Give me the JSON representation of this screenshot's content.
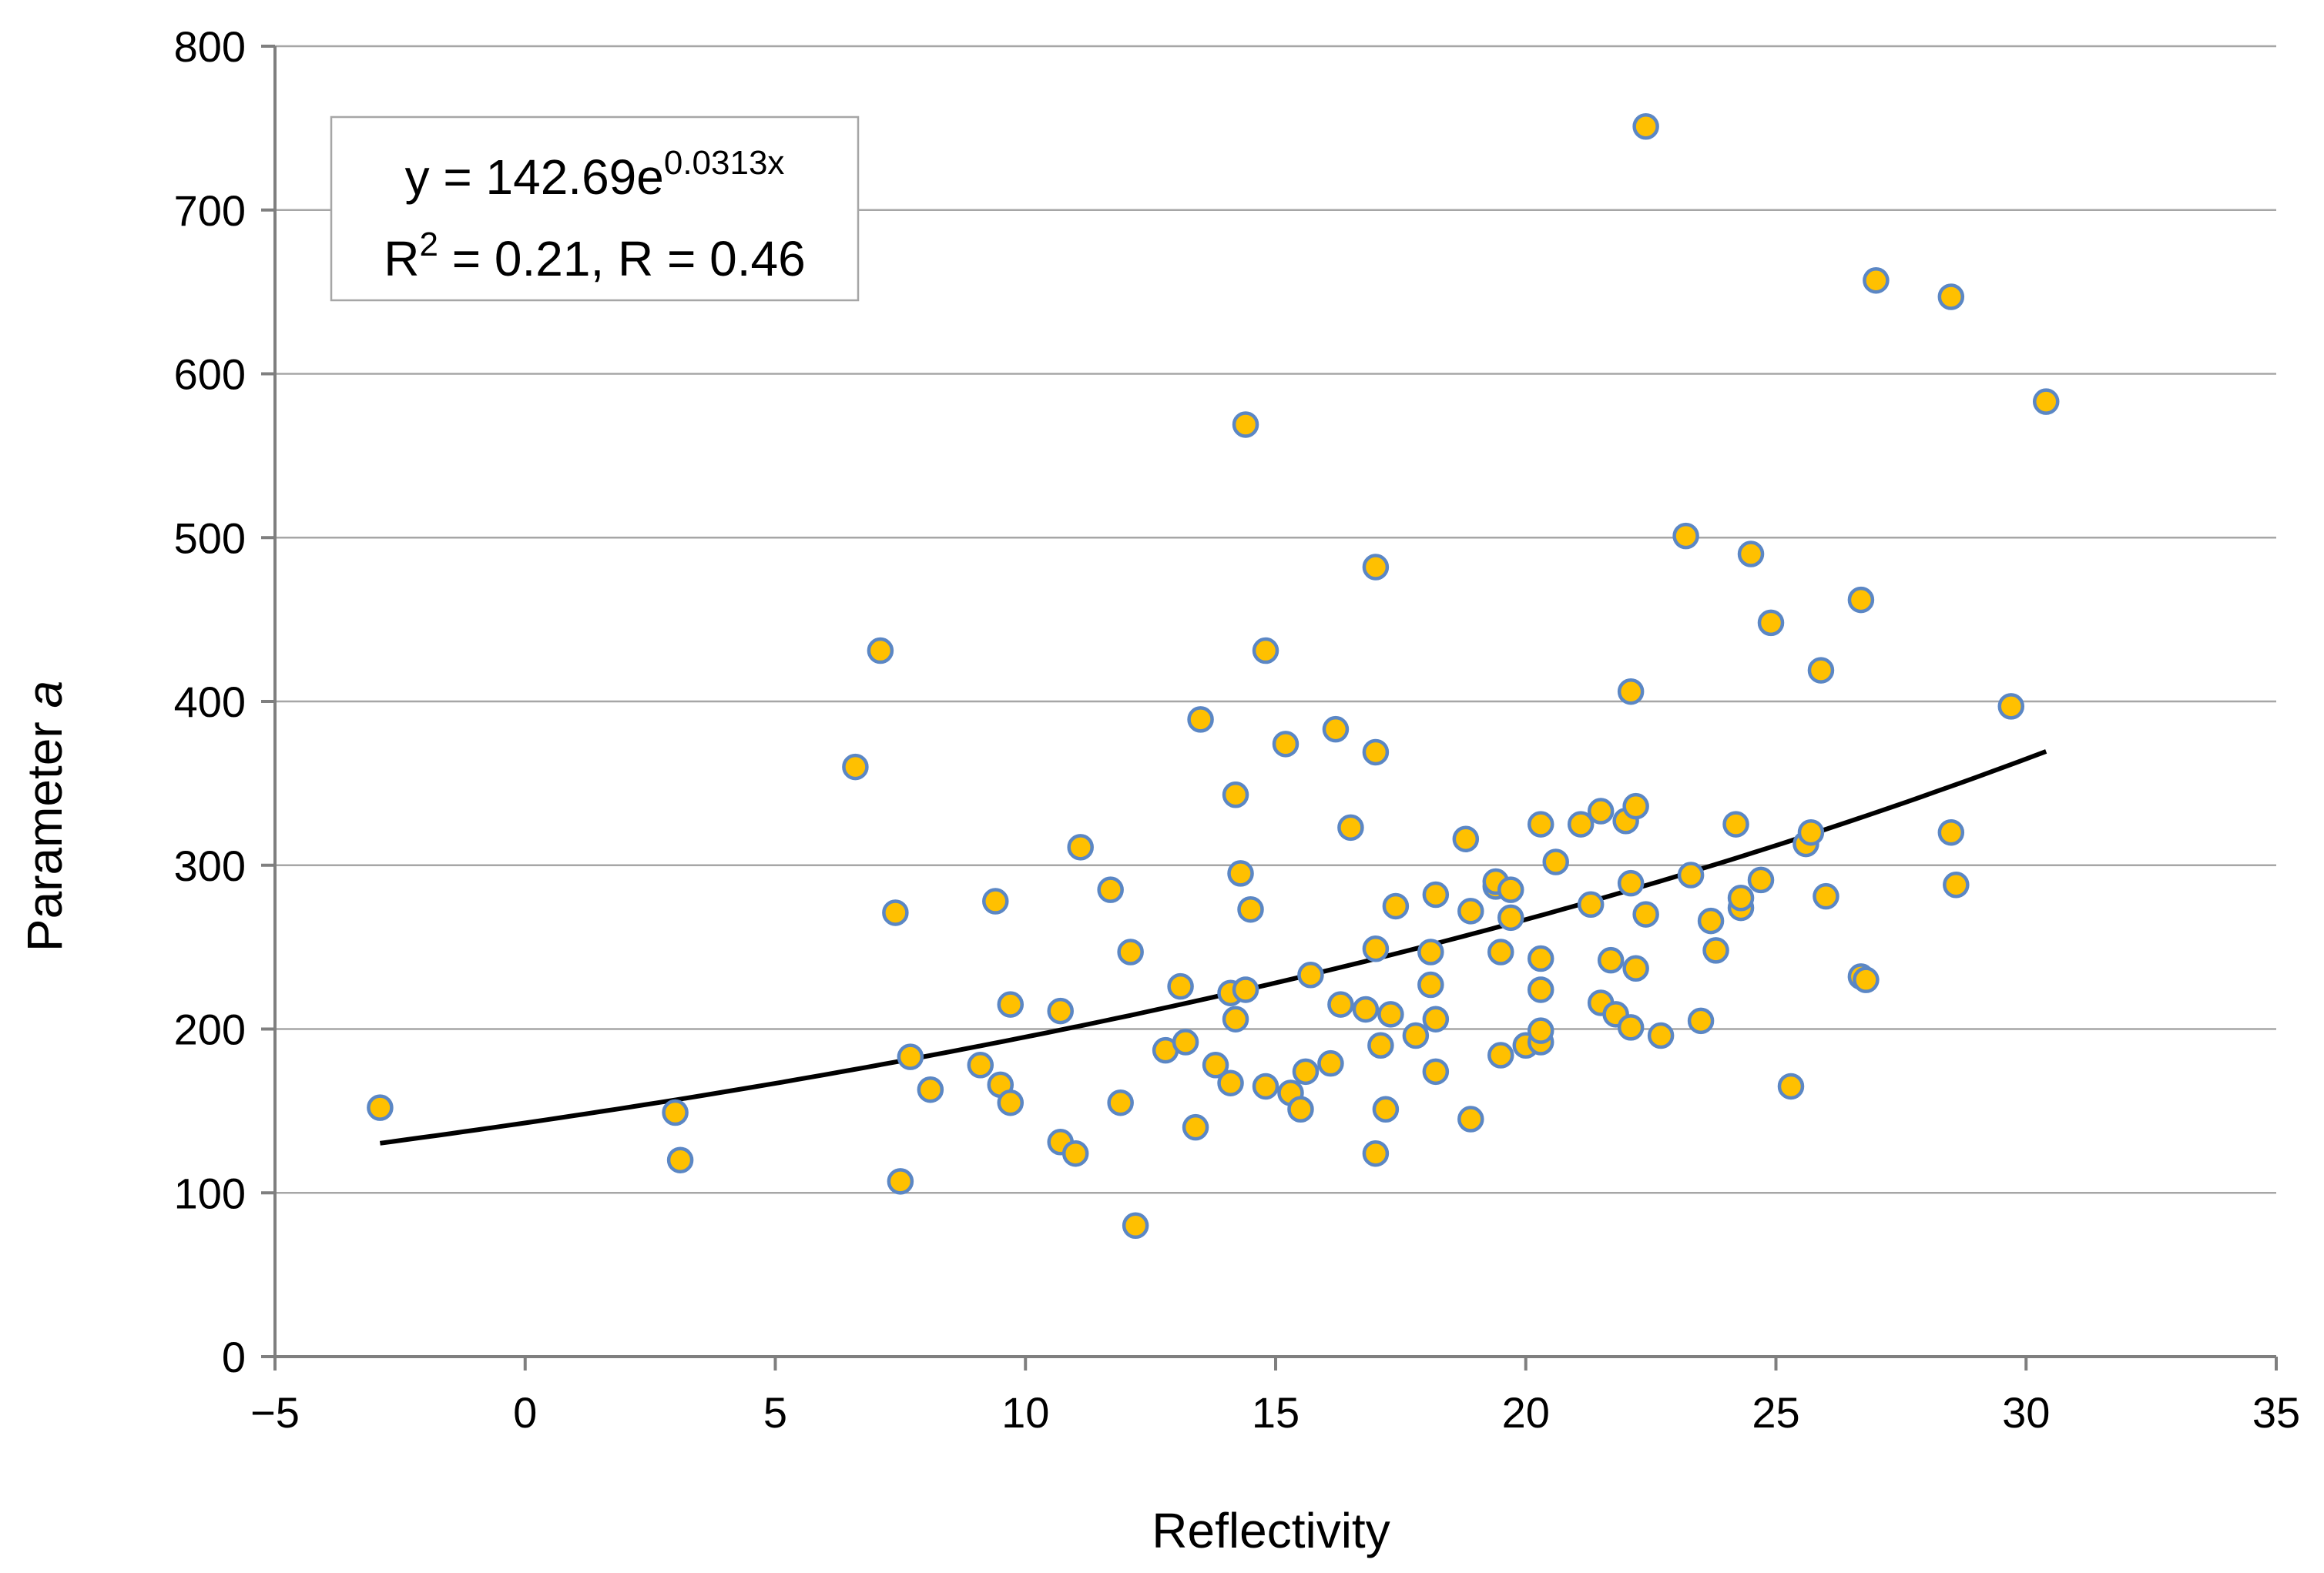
{
  "chart_data": {
    "type": "scatter",
    "xlabel": "Reflectivity",
    "ylabel_main": "Parameter ",
    "ylabel_italic": "a",
    "xlim": [
      -5,
      35
    ],
    "ylim": [
      0,
      800
    ],
    "x_ticks": [
      -5,
      0,
      5,
      10,
      15,
      20,
      25,
      30,
      35
    ],
    "x_tick_labels": [
      "−5",
      "0",
      "5",
      "10",
      "15",
      "20",
      "25",
      "30",
      "35"
    ],
    "y_ticks": [
      0,
      100,
      200,
      300,
      400,
      500,
      600,
      700,
      800
    ],
    "y_tick_labels": [
      "0",
      "100",
      "200",
      "300",
      "400",
      "500",
      "600",
      "700",
      "800"
    ],
    "grid": "horizontal",
    "marker_fill": "#FFC000",
    "marker_edge": "#5B87C5",
    "trendline": {
      "type": "exponential",
      "a": 142.69,
      "b": 0.0313,
      "x_range": [
        -2.9,
        30.4
      ],
      "color": "#000000"
    },
    "annotation": {
      "line1_main": "y = 142.69e",
      "line1_sup": "0.0313x",
      "line2_r": "R",
      "line2_sup": "2",
      "line2_rest": " = 0.21, R = 0.46"
    },
    "points": [
      [
        -2.9,
        152
      ],
      [
        3.0,
        149
      ],
      [
        3.1,
        120
      ],
      [
        6.6,
        360
      ],
      [
        7.1,
        431
      ],
      [
        7.4,
        271
      ],
      [
        7.5,
        107
      ],
      [
        7.7,
        183
      ],
      [
        8.1,
        163
      ],
      [
        9.1,
        178
      ],
      [
        9.4,
        278
      ],
      [
        9.5,
        166
      ],
      [
        9.7,
        215
      ],
      [
        9.7,
        155
      ],
      [
        10.7,
        211
      ],
      [
        10.7,
        131
      ],
      [
        11.0,
        124
      ],
      [
        11.1,
        311
      ],
      [
        11.7,
        285
      ],
      [
        11.9,
        155
      ],
      [
        12.1,
        247
      ],
      [
        12.2,
        80
      ],
      [
        12.8,
        187
      ],
      [
        13.1,
        226
      ],
      [
        13.2,
        192
      ],
      [
        13.5,
        389
      ],
      [
        13.4,
        140
      ],
      [
        13.8,
        178
      ],
      [
        14.1,
        222
      ],
      [
        14.1,
        167
      ],
      [
        14.2,
        343
      ],
      [
        14.2,
        206
      ],
      [
        14.3,
        295
      ],
      [
        14.4,
        224
      ],
      [
        14.4,
        569
      ],
      [
        14.5,
        273
      ],
      [
        14.8,
        431
      ],
      [
        14.8,
        165
      ],
      [
        15.2,
        374
      ],
      [
        15.3,
        161
      ],
      [
        15.5,
        151
      ],
      [
        15.6,
        174
      ],
      [
        15.7,
        233
      ],
      [
        16.2,
        383
      ],
      [
        16.1,
        179
      ],
      [
        16.3,
        215
      ],
      [
        16.5,
        323
      ],
      [
        16.8,
        212
      ],
      [
        17.0,
        482
      ],
      [
        17.0,
        369
      ],
      [
        17.0,
        249
      ],
      [
        17.0,
        124
      ],
      [
        17.1,
        190
      ],
      [
        17.2,
        151
      ],
      [
        17.3,
        209
      ],
      [
        17.4,
        275
      ],
      [
        17.8,
        196
      ],
      [
        18.1,
        247
      ],
      [
        18.1,
        227
      ],
      [
        18.2,
        282
      ],
      [
        18.2,
        206
      ],
      [
        18.2,
        174
      ],
      [
        18.8,
        316
      ],
      [
        18.9,
        272
      ],
      [
        18.9,
        145
      ],
      [
        19.4,
        287
      ],
      [
        19.4,
        290
      ],
      [
        19.5,
        247
      ],
      [
        19.5,
        184
      ],
      [
        19.7,
        268
      ],
      [
        19.7,
        285
      ],
      [
        20.0,
        190
      ],
      [
        20.3,
        325
      ],
      [
        20.3,
        243
      ],
      [
        20.3,
        224
      ],
      [
        20.3,
        192
      ],
      [
        20.3,
        199
      ],
      [
        20.6,
        302
      ],
      [
        21.1,
        325
      ],
      [
        21.3,
        276
      ],
      [
        21.5,
        333
      ],
      [
        21.5,
        216
      ],
      [
        21.7,
        242
      ],
      [
        21.8,
        209
      ],
      [
        22.0,
        327
      ],
      [
        22.1,
        406
      ],
      [
        22.1,
        289
      ],
      [
        22.1,
        201
      ],
      [
        22.2,
        336
      ],
      [
        22.2,
        237
      ],
      [
        22.4,
        270
      ],
      [
        22.4,
        751
      ],
      [
        22.7,
        196
      ],
      [
        23.2,
        501
      ],
      [
        23.3,
        294
      ],
      [
        23.5,
        205
      ],
      [
        23.7,
        266
      ],
      [
        23.8,
        248
      ],
      [
        24.2,
        325
      ],
      [
        24.3,
        274
      ],
      [
        24.3,
        280
      ],
      [
        24.5,
        490
      ],
      [
        24.7,
        291
      ],
      [
        24.9,
        448
      ],
      [
        25.3,
        165
      ],
      [
        25.6,
        313
      ],
      [
        25.7,
        320
      ],
      [
        25.9,
        419
      ],
      [
        26.0,
        281
      ],
      [
        26.7,
        462
      ],
      [
        26.7,
        232
      ],
      [
        26.8,
        230
      ],
      [
        27.0,
        657
      ],
      [
        28.5,
        647
      ],
      [
        28.5,
        320
      ],
      [
        28.6,
        288
      ],
      [
        29.7,
        397
      ],
      [
        30.4,
        583
      ]
    ]
  }
}
